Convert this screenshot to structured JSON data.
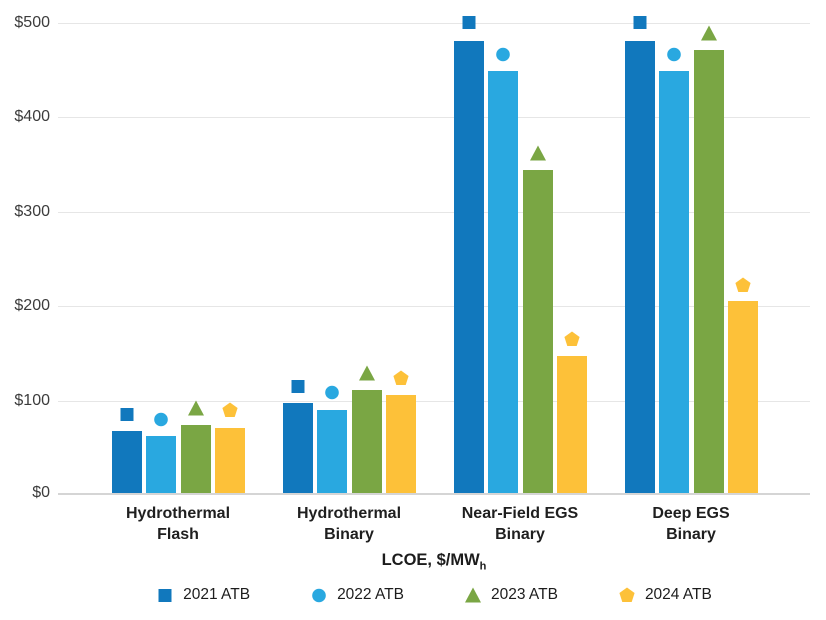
{
  "chart_data": {
    "type": "bar",
    "title": "",
    "xlabel": "LCOE, $/MW",
    "xlabel_subscript": "h",
    "ylabel": "",
    "ylim": [
      0,
      500
    ],
    "ytick_step": 100,
    "ytick_labels": [
      "$0",
      "$100",
      "$200",
      "$300",
      "$400",
      "$500"
    ],
    "grid": true,
    "legend_position": "bottom",
    "categories": [
      "Hydrothermal\nFlash",
      "Hydrothermal\nBinary",
      "Near-Field EGS\nBinary",
      "Deep EGS\nBinary"
    ],
    "series": [
      {
        "name": "2021 ATB",
        "color": "#1178bd",
        "marker": "square",
        "bar_values": [
          68,
          97,
          481,
          481
        ],
        "point_values": [
          86,
          116,
          501,
          501
        ]
      },
      {
        "name": "2022 ATB",
        "color": "#29a8e0",
        "marker": "circle",
        "bar_values": [
          63,
          90,
          449,
          449
        ],
        "point_values": [
          81,
          109,
          467,
          467
        ]
      },
      {
        "name": "2023 ATB",
        "color": "#7aa644",
        "marker": "triangle",
        "bar_values": [
          74,
          111,
          344,
          471
        ],
        "point_values": [
          92,
          129,
          362,
          489
        ]
      },
      {
        "name": "2024 ATB",
        "color": "#fdc139",
        "marker": "pentagon",
        "bar_values": [
          71,
          106,
          147,
          206
        ],
        "point_values": [
          90,
          124,
          165,
          223
        ]
      }
    ]
  },
  "colors": {
    "gridline": "#e6e6e6",
    "axis_line": "#d5d5d5",
    "tick_text": "#3c3c3c",
    "label_text": "#1f1f1f",
    "background": "#ffffff"
  }
}
